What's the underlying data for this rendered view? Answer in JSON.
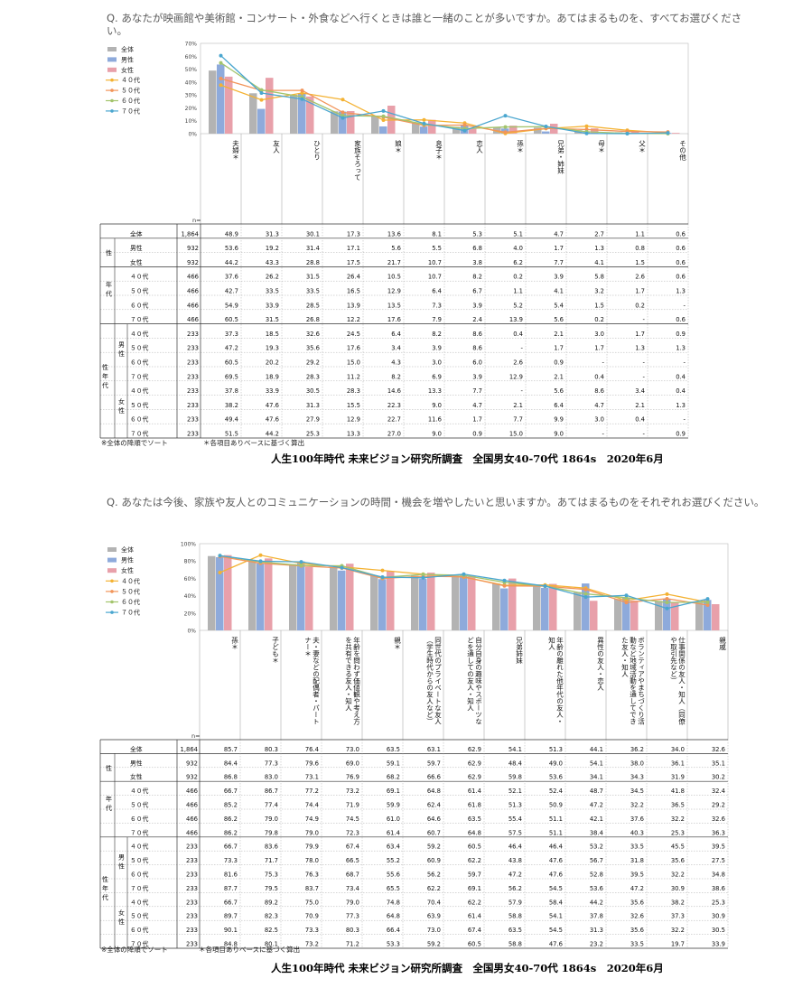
{
  "colors": {
    "total": "#b3b3b3",
    "male": "#8eaadb",
    "female": "#e8a0aa",
    "age40": "#f4b233",
    "age50": "#f2955a",
    "age60": "#a3c46c",
    "age70": "#4aa6cf"
  },
  "sections": [
    {
      "question": "Q. あなたが映画館や美術館・コンサート・外食などへ行くときは誰と一緒のことが多いですか。あてはまるものを、すべてお選びください。",
      "n_label": "n=",
      "legend": [
        "全体",
        "男性",
        "女性",
        "４０代",
        "５０代",
        "６０代",
        "７０代"
      ],
      "columns": [
        "夫婦＊",
        "友人",
        "ひとり",
        "家族そろって",
        "娘＊",
        "息子＊",
        "恋人",
        "孫＊",
        "兄弟・姉妹",
        "母＊",
        "父＊",
        "その他"
      ],
      "ylabels": [
        "70%",
        "60%",
        "50%",
        "40%",
        "30%",
        "20%",
        "10%",
        "0%"
      ],
      "chart_data": {
        "type": "bar",
        "ylim": [
          0,
          70
        ],
        "categories": [
          "夫婦",
          "友人",
          "ひとり",
          "家族そろって",
          "娘",
          "息子",
          "恋人",
          "孫",
          "兄弟・姉妹",
          "母",
          "父",
          "その他"
        ],
        "series": [
          {
            "name": "全体",
            "values": [
              48.9,
              31.3,
              30.1,
              17.3,
              13.6,
              8.1,
              5.3,
              5.1,
              4.7,
              2.7,
              1.1,
              0.6
            ]
          },
          {
            "name": "男性",
            "values": [
              53.6,
              19.2,
              31.4,
              17.1,
              5.6,
              5.5,
              6.8,
              4.0,
              1.7,
              1.3,
              0.8,
              0.6
            ]
          },
          {
            "name": "女性",
            "values": [
              44.2,
              43.3,
              28.8,
              17.5,
              21.7,
              10.7,
              3.8,
              6.2,
              7.7,
              4.1,
              1.5,
              0.6
            ]
          },
          {
            "name": "４０代",
            "values": [
              37.6,
              26.2,
              31.5,
              26.4,
              10.5,
              10.7,
              8.2,
              0.2,
              3.9,
              5.8,
              2.6,
              0.6
            ]
          },
          {
            "name": "５０代",
            "values": [
              42.7,
              33.5,
              33.5,
              16.5,
              12.9,
              6.4,
              6.7,
              1.1,
              4.1,
              3.2,
              1.7,
              1.3
            ]
          },
          {
            "name": "６０代",
            "values": [
              54.9,
              33.9,
              28.5,
              13.9,
              13.5,
              7.3,
              3.9,
              5.2,
              5.4,
              1.5,
              0.2,
              0
            ]
          },
          {
            "name": "７０代",
            "values": [
              60.5,
              31.5,
              26.8,
              12.2,
              17.6,
              7.9,
              2.4,
              13.9,
              5.6,
              0.2,
              0,
              0.6
            ]
          }
        ]
      },
      "rows": [
        {
          "group": "",
          "sub": "",
          "label": "全体",
          "n": "1,864",
          "v": [
            "48.9",
            "31.3",
            "30.1",
            "17.3",
            "13.6",
            "8.1",
            "5.3",
            "5.1",
            "4.7",
            "2.7",
            "1.1",
            "0.6"
          ]
        },
        {
          "group": "性",
          "sub": "",
          "label": "男性",
          "n": "932",
          "v": [
            "53.6",
            "19.2",
            "31.4",
            "17.1",
            "5.6",
            "5.5",
            "6.8",
            "4.0",
            "1.7",
            "1.3",
            "0.8",
            "0.6"
          ]
        },
        {
          "group": "",
          "sub": "",
          "label": "女性",
          "n": "932",
          "v": [
            "44.2",
            "43.3",
            "28.8",
            "17.5",
            "21.7",
            "10.7",
            "3.8",
            "6.2",
            "7.7",
            "4.1",
            "1.5",
            "0.6"
          ]
        },
        {
          "group": "年",
          "sub": "",
          "label": "４０代",
          "n": "466",
          "v": [
            "37.6",
            "26.2",
            "31.5",
            "26.4",
            "10.5",
            "10.7",
            "8.2",
            "0.2",
            "3.9",
            "5.8",
            "2.6",
            "0.6"
          ]
        },
        {
          "group": "代",
          "sub": "",
          "label": "５０代",
          "n": "466",
          "v": [
            "42.7",
            "33.5",
            "33.5",
            "16.5",
            "12.9",
            "6.4",
            "6.7",
            "1.1",
            "4.1",
            "3.2",
            "1.7",
            "1.3"
          ]
        },
        {
          "group": "",
          "sub": "",
          "label": "６０代",
          "n": "466",
          "v": [
            "54.9",
            "33.9",
            "28.5",
            "13.9",
            "13.5",
            "7.3",
            "3.9",
            "5.2",
            "5.4",
            "1.5",
            "0.2",
            "-"
          ]
        },
        {
          "group": "",
          "sub": "",
          "label": "７０代",
          "n": "466",
          "v": [
            "60.5",
            "31.5",
            "26.8",
            "12.2",
            "17.6",
            "7.9",
            "2.4",
            "13.9",
            "5.6",
            "0.2",
            "-",
            "0.6"
          ]
        },
        {
          "group": "",
          "sub": "",
          "label": "４０代",
          "n": "233",
          "v": [
            "37.3",
            "18.5",
            "32.6",
            "24.5",
            "6.4",
            "8.2",
            "8.6",
            "0.4",
            "2.1",
            "3.0",
            "1.7",
            "0.9"
          ]
        },
        {
          "group": "",
          "sub": "男",
          "label": "５０代",
          "n": "233",
          "v": [
            "47.2",
            "19.3",
            "35.6",
            "17.6",
            "3.4",
            "3.9",
            "8.6",
            "-",
            "1.7",
            "1.7",
            "1.3",
            "1.3"
          ]
        },
        {
          "group": "",
          "sub": "性",
          "label": "６０代",
          "n": "233",
          "v": [
            "60.5",
            "20.2",
            "29.2",
            "15.0",
            "4.3",
            "3.0",
            "6.0",
            "2.6",
            "0.9",
            "-",
            "-",
            "-"
          ]
        },
        {
          "group": "",
          "sub": "",
          "label": "７０代",
          "n": "233",
          "v": [
            "69.5",
            "18.9",
            "28.3",
            "11.2",
            "8.2",
            "6.9",
            "3.9",
            "12.9",
            "2.1",
            "0.4",
            "-",
            "0.4"
          ]
        },
        {
          "group": "",
          "sub": "",
          "label": "４０代",
          "n": "233",
          "v": [
            "37.8",
            "33.9",
            "30.5",
            "28.3",
            "14.6",
            "13.3",
            "7.7",
            "-",
            "5.6",
            "8.6",
            "3.4",
            "0.4"
          ]
        },
        {
          "group": "",
          "sub": "女",
          "label": "５０代",
          "n": "233",
          "v": [
            "38.2",
            "47.6",
            "31.3",
            "15.5",
            "22.3",
            "9.0",
            "4.7",
            "2.1",
            "6.4",
            "4.7",
            "2.1",
            "1.3"
          ]
        },
        {
          "group": "",
          "sub": "性",
          "label": "６０代",
          "n": "233",
          "v": [
            "49.4",
            "47.6",
            "27.9",
            "12.9",
            "22.7",
            "11.6",
            "1.7",
            "7.7",
            "9.9",
            "3.0",
            "0.4",
            "-"
          ]
        },
        {
          "group": "",
          "sub": "",
          "label": "７０代",
          "n": "233",
          "v": [
            "51.5",
            "44.2",
            "25.3",
            "13.3",
            "27.0",
            "9.0",
            "0.9",
            "15.0",
            "9.0",
            "-",
            "-",
            "0.9"
          ]
        }
      ],
      "group_labels": [
        "性",
        "年代",
        "性年代",
        "男性",
        "女性"
      ],
      "note_sort": "※全体の降順でソート",
      "note_base": "＊各項目ありベースに基づく算出",
      "source": "人生100年時代 未来ビジョン研究所調査　全国男女40-70代 1864s　2020年6月"
    },
    {
      "question": "Q. あなたは今後、家族や友人とのコミュニケーションの時間・機会を増やしたいと思いますか。あてはまるものをそれぞれお選びください。",
      "n_label": "n=",
      "legend": [
        "全体",
        "男性",
        "女性",
        "４０代",
        "５０代",
        "６０代",
        "７０代"
      ],
      "columns": [
        "孫＊",
        "子ども＊",
        "夫・妻などの配偶者・パートナー＊",
        "年齢を問わず価値観や考え方を共有できる友人・知人",
        "親＊",
        "同世代のプライベートな友人（学生時代からの友人など）",
        "自分自身の趣味やスポーツなどを通しての友人・知人",
        "兄弟姉妹",
        "年齢の離れた他年代の友人・知人",
        "異性の友人・恋人",
        "ボランティアやまちづくり活動など地域活動を通してできた友人・知人",
        "仕事関係の友人・知人（同僚や取引先など）",
        "親戚"
      ],
      "ylabels": [
        "100%",
        "80%",
        "60%",
        "40%",
        "20%",
        "0%"
      ],
      "chart_data": {
        "type": "bar",
        "ylim": [
          0,
          100
        ],
        "categories": [
          "孫",
          "子ども",
          "夫・妻などの配偶者・パートナー",
          "年齢を問わず価値観や考え方を共有できる友人・知人",
          "親",
          "同世代のプライベートな友人（学生時代からの友人など）",
          "自分自身の趣味やスポーツなどを通しての友人・知人",
          "兄弟姉妹",
          "年齢の離れた他年代の友人・知人",
          "異性の友人・恋人",
          "ボランティアやまちづくり活動など地域活動を通してできた友人・知人",
          "仕事関係の友人・知人（同僚や取引先など）",
          "親戚"
        ],
        "series": [
          {
            "name": "全体",
            "values": [
              85.7,
              80.3,
              76.4,
              73.0,
              63.5,
              63.1,
              62.9,
              54.1,
              51.3,
              44.1,
              36.2,
              34.0,
              32.6
            ]
          },
          {
            "name": "男性",
            "values": [
              84.4,
              77.3,
              79.6,
              69.0,
              59.1,
              59.7,
              62.9,
              48.4,
              49.0,
              54.1,
              38.0,
              36.1,
              35.1
            ]
          },
          {
            "name": "女性",
            "values": [
              86.8,
              83.0,
              73.1,
              76.9,
              68.2,
              66.6,
              62.9,
              59.8,
              53.6,
              34.1,
              34.3,
              31.9,
              30.2
            ]
          },
          {
            "name": "４０代",
            "values": [
              66.7,
              86.7,
              77.2,
              73.2,
              69.1,
              64.8,
              61.4,
              52.1,
              52.4,
              48.7,
              34.5,
              41.8,
              32.4
            ]
          },
          {
            "name": "５０代",
            "values": [
              85.2,
              77.4,
              74.4,
              71.9,
              59.9,
              62.4,
              61.8,
              51.3,
              50.9,
              47.2,
              32.2,
              36.5,
              29.2
            ]
          },
          {
            "name": "６０代",
            "values": [
              86.2,
              79.0,
              74.9,
              74.5,
              61.0,
              64.6,
              63.5,
              55.4,
              51.1,
              42.1,
              37.6,
              32.2,
              32.6
            ]
          },
          {
            "name": "７０代",
            "values": [
              86.2,
              79.8,
              79.0,
              72.3,
              61.4,
              60.7,
              64.8,
              57.5,
              51.1,
              38.4,
              40.3,
              25.3,
              36.3
            ]
          }
        ]
      },
      "rows": [
        {
          "group": "",
          "sub": "",
          "label": "全体",
          "n": "1,864",
          "v": [
            "85.7",
            "80.3",
            "76.4",
            "73.0",
            "63.5",
            "63.1",
            "62.9",
            "54.1",
            "51.3",
            "44.1",
            "36.2",
            "34.0",
            "32.6"
          ]
        },
        {
          "group": "性",
          "sub": "",
          "label": "男性",
          "n": "932",
          "v": [
            "84.4",
            "77.3",
            "79.6",
            "69.0",
            "59.1",
            "59.7",
            "62.9",
            "48.4",
            "49.0",
            "54.1",
            "38.0",
            "36.1",
            "35.1"
          ]
        },
        {
          "group": "",
          "sub": "",
          "label": "女性",
          "n": "932",
          "v": [
            "86.8",
            "83.0",
            "73.1",
            "76.9",
            "68.2",
            "66.6",
            "62.9",
            "59.8",
            "53.6",
            "34.1",
            "34.3",
            "31.9",
            "30.2"
          ]
        },
        {
          "group": "年",
          "sub": "",
          "label": "４０代",
          "n": "466",
          "v": [
            "66.7",
            "86.7",
            "77.2",
            "73.2",
            "69.1",
            "64.8",
            "61.4",
            "52.1",
            "52.4",
            "48.7",
            "34.5",
            "41.8",
            "32.4"
          ]
        },
        {
          "group": "代",
          "sub": "",
          "label": "５０代",
          "n": "466",
          "v": [
            "85.2",
            "77.4",
            "74.4",
            "71.9",
            "59.9",
            "62.4",
            "61.8",
            "51.3",
            "50.9",
            "47.2",
            "32.2",
            "36.5",
            "29.2"
          ]
        },
        {
          "group": "",
          "sub": "",
          "label": "６０代",
          "n": "466",
          "v": [
            "86.2",
            "79.0",
            "74.9",
            "74.5",
            "61.0",
            "64.6",
            "63.5",
            "55.4",
            "51.1",
            "42.1",
            "37.6",
            "32.2",
            "32.6"
          ]
        },
        {
          "group": "",
          "sub": "",
          "label": "７０代",
          "n": "466",
          "v": [
            "86.2",
            "79.8",
            "79.0",
            "72.3",
            "61.4",
            "60.7",
            "64.8",
            "57.5",
            "51.1",
            "38.4",
            "40.3",
            "25.3",
            "36.3"
          ]
        },
        {
          "group": "",
          "sub": "",
          "label": "４０代",
          "n": "233",
          "v": [
            "66.7",
            "83.6",
            "79.9",
            "67.4",
            "63.4",
            "59.2",
            "60.5",
            "46.4",
            "46.4",
            "53.2",
            "33.5",
            "45.5",
            "39.5"
          ]
        },
        {
          "group": "",
          "sub": "男",
          "label": "５０代",
          "n": "233",
          "v": [
            "73.3",
            "71.7",
            "78.0",
            "66.5",
            "55.2",
            "60.9",
            "62.2",
            "43.8",
            "47.6",
            "56.7",
            "31.8",
            "35.6",
            "27.5"
          ]
        },
        {
          "group": "",
          "sub": "性",
          "label": "６０代",
          "n": "233",
          "v": [
            "81.6",
            "75.3",
            "76.3",
            "68.7",
            "55.6",
            "56.2",
            "59.7",
            "47.2",
            "47.6",
            "52.8",
            "39.5",
            "32.2",
            "34.8"
          ]
        },
        {
          "group": "",
          "sub": "",
          "label": "７０代",
          "n": "233",
          "v": [
            "87.7",
            "79.5",
            "83.7",
            "73.4",
            "65.5",
            "62.2",
            "69.1",
            "56.2",
            "54.5",
            "53.6",
            "47.2",
            "30.9",
            "38.6"
          ]
        },
        {
          "group": "",
          "sub": "",
          "label": "４０代",
          "n": "233",
          "v": [
            "66.7",
            "89.2",
            "75.0",
            "79.0",
            "74.8",
            "70.4",
            "62.2",
            "57.9",
            "58.4",
            "44.2",
            "35.6",
            "38.2",
            "25.3"
          ]
        },
        {
          "group": "",
          "sub": "女",
          "label": "５０代",
          "n": "233",
          "v": [
            "89.7",
            "82.3",
            "70.9",
            "77.3",
            "64.8",
            "63.9",
            "61.4",
            "58.8",
            "54.1",
            "37.8",
            "32.6",
            "37.3",
            "30.9"
          ]
        },
        {
          "group": "",
          "sub": "性",
          "label": "６０代",
          "n": "233",
          "v": [
            "90.1",
            "82.5",
            "73.3",
            "80.3",
            "66.4",
            "73.0",
            "67.4",
            "63.5",
            "54.5",
            "31.3",
            "35.6",
            "32.2",
            "30.5"
          ]
        },
        {
          "group": "",
          "sub": "",
          "label": "７０代",
          "n": "233",
          "v": [
            "84.8",
            "80.1",
            "73.2",
            "71.2",
            "53.3",
            "59.2",
            "60.5",
            "58.8",
            "47.6",
            "23.2",
            "33.5",
            "19.7",
            "33.9"
          ]
        }
      ],
      "group_labels": [
        "性",
        "年代",
        "性年代",
        "男性",
        "女性"
      ],
      "note_sort": "※全体の降順でソート",
      "note_base": "＊各項目ありベースに基づく算出",
      "source": "人生100年時代 未来ビジョン研究所調査　全国男女40-70代 1864s　2020年6月"
    }
  ]
}
